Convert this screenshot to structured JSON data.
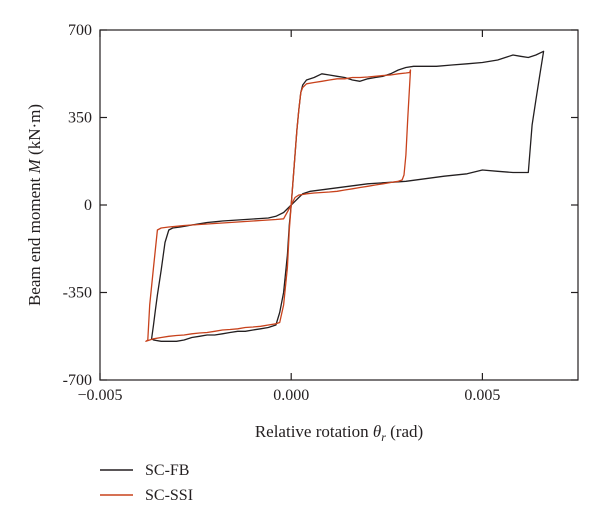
{
  "chart_data": {
    "type": "line",
    "xlabel": {
      "prefix": "Relative rotation ",
      "var": "θ",
      "sub": "r",
      "suffix": " (rad)"
    },
    "ylabel": {
      "prefix": "Beam end moment ",
      "var": "M",
      "suffix": " (kN·m)"
    },
    "xlim": [
      -0.005,
      0.0075
    ],
    "ylim": [
      -700,
      700
    ],
    "xticks": [
      {
        "value": -0.005,
        "label": "−0.005"
      },
      {
        "value": 0.0,
        "label": "0.000"
      },
      {
        "value": 0.005,
        "label": "0.005"
      }
    ],
    "yticks": [
      {
        "value": 700,
        "label": "700"
      },
      {
        "value": 350,
        "label": "350"
      },
      {
        "value": 0,
        "label": "0"
      },
      {
        "value": -350,
        "label": "-350"
      },
      {
        "value": -700,
        "label": "-700"
      }
    ],
    "grid": false,
    "legend": {
      "placement": "below-plot-left"
    },
    "series": [
      {
        "name": "SC-FB",
        "color": "#231f20",
        "x": [
          0,
          5e-05,
          0.0001,
          0.00015,
          0.0002,
          0.00025,
          0.0003,
          0.0004,
          0.0006,
          0.0008,
          0.001,
          0.0012,
          0.0014,
          0.0016,
          0.0018,
          0.002,
          0.0022,
          0.0024,
          0.0026,
          0.0028,
          0.003,
          0.0032,
          0.0034,
          0.0038,
          0.0042,
          0.0046,
          0.005,
          0.0054,
          0.0056,
          0.0058,
          0.006,
          0.0062,
          0.0064,
          0.0066,
          0.0065,
          0.0064,
          0.0063,
          0.0062,
          0.0058,
          0.0054,
          0.005,
          0.0046,
          0.004,
          0.003,
          0.002,
          0.0015,
          0.001,
          0.0005,
          0.0003,
          0.0002,
          0.0001,
          0,
          -5e-05,
          -0.0001,
          -0.0002,
          -0.0003,
          -0.0004,
          -0.0006,
          -0.0008,
          -0.001,
          -0.0012,
          -0.0014,
          -0.0016,
          -0.0018,
          -0.002,
          -0.0022,
          -0.0024,
          -0.0026,
          -0.0028,
          -0.003,
          -0.0032,
          -0.0034,
          -0.0036,
          -0.00365,
          -0.0036,
          -0.00355,
          -0.0035,
          -0.0034,
          -0.0033,
          -0.0032,
          -0.0031,
          -0.003,
          -0.0029,
          -0.0028,
          -0.0026,
          -0.0024,
          -0.0022,
          -0.002,
          -0.0018,
          -0.0016,
          -0.0014,
          -0.0012,
          -0.001,
          -0.0008,
          -0.0006,
          -0.0004,
          -0.0002,
          0
        ],
        "y": [
          0,
          100,
          200,
          300,
          380,
          450,
          480,
          500,
          510,
          525,
          520,
          515,
          510,
          500,
          495,
          505,
          510,
          515,
          525,
          540,
          550,
          555,
          555,
          555,
          560,
          565,
          570,
          580,
          590,
          600,
          595,
          590,
          600,
          615,
          520,
          420,
          320,
          130,
          130,
          135,
          140,
          125,
          115,
          95,
          85,
          75,
          65,
          55,
          45,
          30,
          15,
          0,
          -80,
          -200,
          -350,
          -430,
          -480,
          -490,
          -495,
          -500,
          -505,
          -505,
          -510,
          -515,
          -520,
          -520,
          -525,
          -530,
          -540,
          -545,
          -545,
          -545,
          -540,
          -535,
          -480,
          -420,
          -360,
          -260,
          -150,
          -100,
          -92,
          -90,
          -88,
          -85,
          -80,
          -75,
          -70,
          -67,
          -64,
          -62,
          -60,
          -58,
          -56,
          -54,
          -52,
          -45,
          -30,
          0
        ]
      },
      {
        "name": "SC-SSI",
        "color": "#c8421c",
        "x": [
          0,
          5e-05,
          0.0001,
          0.00015,
          0.0002,
          0.00025,
          0.0003,
          0.0004,
          0.0006,
          0.0008,
          0.001,
          0.0012,
          0.0014,
          0.0016,
          0.0018,
          0.002,
          0.0022,
          0.0024,
          0.0026,
          0.0028,
          0.003,
          0.0031,
          0.00312,
          0.00305,
          0.003,
          0.00295,
          0.0029,
          0.0028,
          0.0026,
          0.0024,
          0.0022,
          0.002,
          0.0018,
          0.0016,
          0.0014,
          0.0012,
          0.001,
          0.0008,
          0.0006,
          0.0004,
          0.0003,
          0.0002,
          0.0001,
          0,
          -5e-05,
          -0.0001,
          -0.0002,
          -0.0003,
          -0.0004,
          -0.0006,
          -0.0008,
          -0.001,
          -0.0012,
          -0.0014,
          -0.0016,
          -0.0018,
          -0.002,
          -0.0022,
          -0.0024,
          -0.0026,
          -0.0028,
          -0.003,
          -0.0032,
          -0.0034,
          -0.0036,
          -0.0038,
          -0.00375,
          -0.0037,
          -0.0036,
          -0.0035,
          -0.0034,
          -0.0032,
          -0.003,
          -0.0028,
          -0.0026,
          -0.0024,
          -0.0022,
          -0.002,
          -0.0018,
          -0.0016,
          -0.0014,
          -0.0012,
          -0.001,
          -0.0008,
          -0.0006,
          -0.0004,
          -0.0002,
          0
        ],
        "y": [
          0,
          100,
          200,
          300,
          380,
          450,
          470,
          485,
          490,
          495,
          500,
          505,
          505,
          510,
          510,
          512,
          515,
          518,
          520,
          525,
          528,
          530,
          540,
          350,
          200,
          120,
          100,
          95,
          90,
          85,
          80,
          75,
          70,
          65,
          60,
          55,
          52,
          50,
          48,
          45,
          42,
          40,
          30,
          0,
          -100,
          -250,
          -400,
          -470,
          -475,
          -480,
          -485,
          -488,
          -490,
          -495,
          -498,
          -500,
          -505,
          -510,
          -512,
          -515,
          -520,
          -522,
          -525,
          -530,
          -535,
          -545,
          -540,
          -400,
          -250,
          -100,
          -92,
          -88,
          -85,
          -82,
          -80,
          -78,
          -76,
          -74,
          -72,
          -70,
          -68,
          -66,
          -64,
          -62,
          -60,
          -58,
          -55,
          0
        ]
      }
    ]
  }
}
